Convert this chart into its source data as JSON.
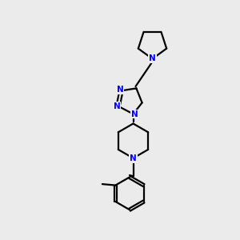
{
  "bg_color": "#ebebeb",
  "bond_color": "#000000",
  "nitrogen_color": "#0000ff",
  "line_width": 1.6,
  "figsize": [
    3.0,
    3.0
  ],
  "dpi": 100,
  "xlim": [
    0,
    10
  ],
  "ylim": [
    0,
    10
  ]
}
